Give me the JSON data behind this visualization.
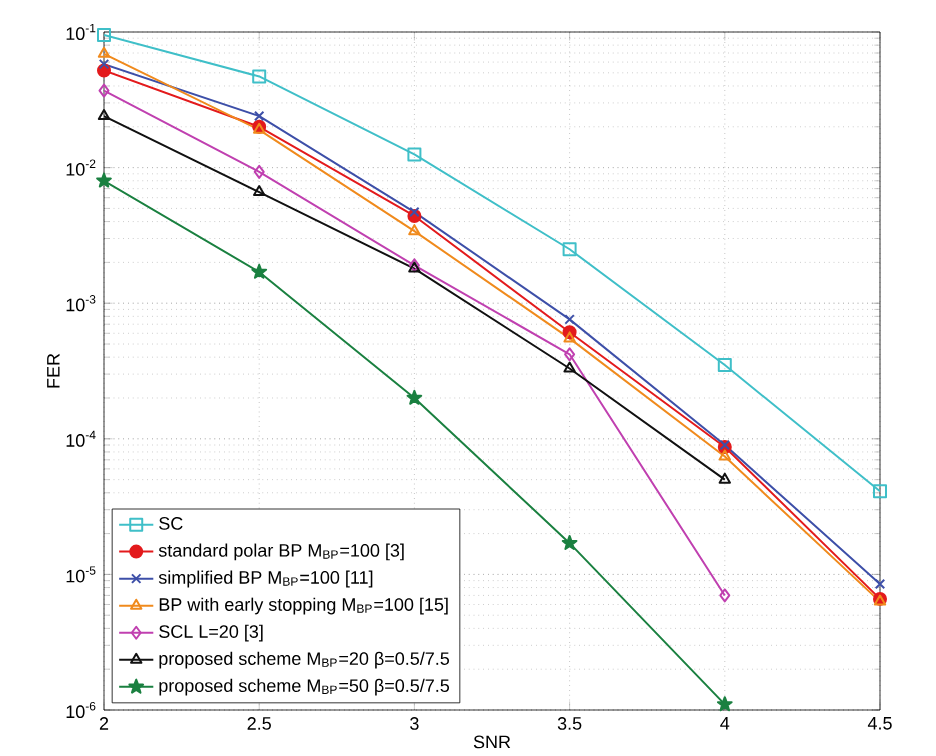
{
  "chart_data": {
    "type": "line",
    "xlabel": "SNR",
    "ylabel": "FER",
    "log": "y",
    "grid": true,
    "legend": "bottom left",
    "line_style": "solid",
    "xlim": [
      2,
      4.5
    ],
    "xticks": [
      2,
      2.5,
      3,
      3.5,
      4,
      4.5
    ],
    "ylim": [
      1e-06,
      0.1
    ],
    "yticks": [
      {
        "value": 1e-06,
        "label": "10$^{-6}$"
      },
      {
        "value": 1e-05,
        "label": "10$^{-5}$"
      },
      {
        "value": 0.0001,
        "label": "10$^{-4}$"
      },
      {
        "value": 0.001,
        "label": "10$^{-3}$"
      },
      {
        "value": 0.01,
        "label": "10$^{-2}$"
      },
      {
        "value": 0.1,
        "label": "10$^{-1}$"
      }
    ],
    "x": [
      2,
      2.5,
      3,
      3.5,
      4,
      4.5
    ],
    "series": [
      {
        "name": "SC",
        "color": "#3fbfc8",
        "marker": "square",
        "values": [
          0.095,
          0.047,
          0.0125,
          0.0025,
          0.00035,
          4.1e-05
        ]
      },
      {
        "name": "standard polar BP M$_{BP}$=100 [3]",
        "color": "#e31a1c",
        "marker": "circle",
        "values": [
          0.052,
          0.02,
          0.0044,
          0.00061,
          8.7e-05,
          6.6e-06
        ]
      },
      {
        "name": "simplified BP  M$_{BP}$=100 [11]",
        "color": "#3d4fa8",
        "marker": "cross",
        "values": [
          0.058,
          0.024,
          0.0047,
          0.00076,
          9e-05,
          8.5e-06
        ]
      },
      {
        "name": "BP with early stopping M$_{BP}$=100 [15]",
        "color": "#f08a1c",
        "marker": "triangle",
        "values": [
          0.069,
          0.019,
          0.0034,
          0.00055,
          7.4e-05,
          6.3e-06
        ]
      },
      {
        "name": "SCL L=20 [3]",
        "color": "#c040b0",
        "marker": "diamond",
        "values": [
          0.037,
          0.0093,
          0.0019,
          0.00042,
          7e-06,
          null
        ]
      },
      {
        "name": "proposed scheme M$_{BP}$=20 β=0.5/7.5",
        "color": "#111111",
        "marker": "triangle",
        "values": [
          0.024,
          0.0066,
          0.0018,
          0.00033,
          5e-05,
          null
        ]
      },
      {
        "name": "proposed scheme M$_{BP}$=50 β=0.5/7.5",
        "color": "#1a8040",
        "marker": "star",
        "values": [
          0.008,
          0.0017,
          0.0002,
          1.7e-05,
          1.1e-06,
          null
        ]
      }
    ]
  }
}
